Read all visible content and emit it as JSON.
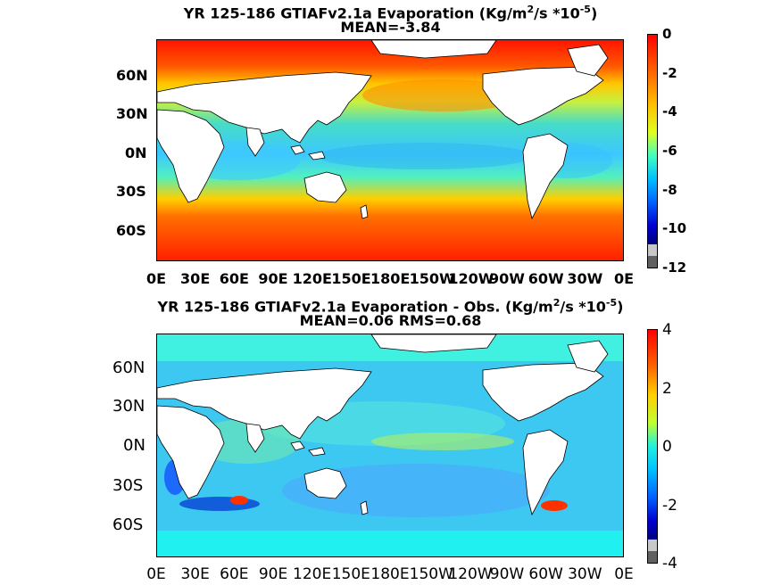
{
  "chart_data": [
    {
      "type": "heatmap",
      "title_line1": "YR 125-186 GTIAFv2.1a  Evaporation (Kg/m",
      "title_sup1": "2",
      "title_mid": "/s *10",
      "title_sup2": "-5",
      "title_end": ")",
      "title_line2": "MEAN=-3.84",
      "x_ticks": [
        "0E",
        "30E",
        "60E",
        "90E",
        "120E",
        "150E",
        "180E",
        "150W",
        "120W",
        "90W",
        "60W",
        "30W",
        "0E"
      ],
      "y_ticks": [
        "60N",
        "30N",
        "0N",
        "30S",
        "60S"
      ],
      "colorbar_ticks": [
        "0",
        "-2",
        "-4",
        "-6",
        "-8",
        "-10",
        "-12"
      ],
      "colorbar_range": [
        -12,
        0
      ],
      "colormap": "jet"
    },
    {
      "type": "heatmap",
      "title_line1": "YR 125-186 GTIAFv2.1a Evaporation - Obs. (Kg/m",
      "title_sup1": "2",
      "title_mid": "/s *10",
      "title_sup2": "-5",
      "title_end": ")",
      "title_line2": "MEAN=0.06   RMS=0.68",
      "x_ticks": [
        "0E",
        "30E",
        "60E",
        "90E",
        "120E",
        "150E",
        "180E",
        "150W",
        "120W",
        "90W",
        "60W",
        "30W",
        "0E"
      ],
      "y_ticks": [
        "60N",
        "30N",
        "0N",
        "30S",
        "60S"
      ],
      "colorbar_ticks": [
        "4",
        "2",
        "0",
        "-2",
        "-4"
      ],
      "colorbar_range": [
        -4,
        4
      ],
      "colormap": "jet"
    }
  ]
}
